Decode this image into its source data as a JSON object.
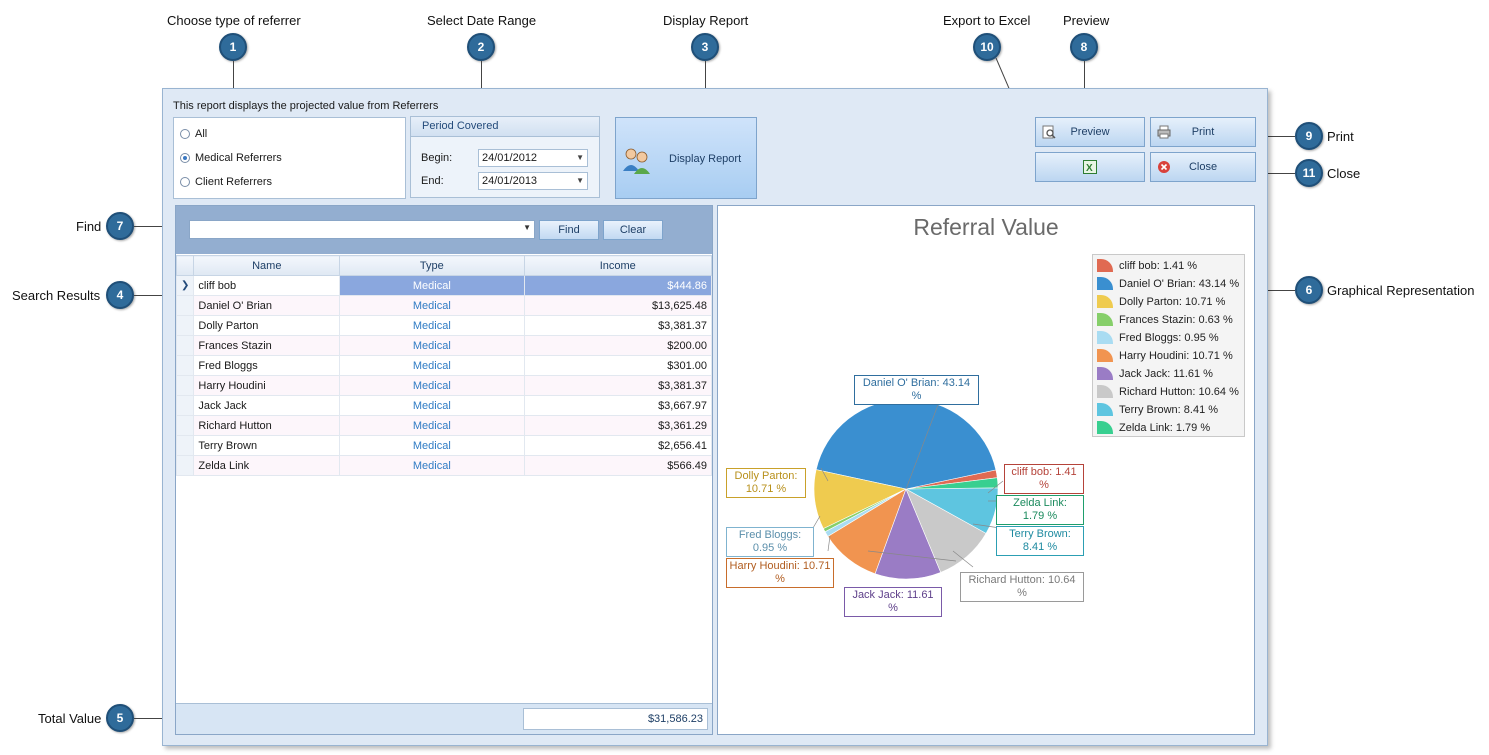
{
  "callouts": {
    "c1": {
      "num": "1",
      "label": "Choose type of referrer"
    },
    "c2": {
      "num": "2",
      "label": "Select Date Range"
    },
    "c3": {
      "num": "3",
      "label": "Display Report"
    },
    "c10": {
      "num": "10",
      "label": "Export to Excel"
    },
    "c8": {
      "num": "8",
      "label": "Preview"
    },
    "c9": {
      "num": "9",
      "label": "Print"
    },
    "c11": {
      "num": "11",
      "label": "Close"
    },
    "c7": {
      "num": "7",
      "label": "Find"
    },
    "c4": {
      "num": "4",
      "label": "Search Results"
    },
    "c6": {
      "num": "6",
      "label": "Graphical Representation"
    },
    "c5": {
      "num": "5",
      "label": "Total Value"
    }
  },
  "report": {
    "description": "This report displays the projected value from Referrers",
    "referrer_options": [
      "All",
      "Medical Referrers",
      "Client Referrers"
    ],
    "selected_option": "Medical Referrers",
    "period_title": "Period Covered",
    "begin_label": "Begin:",
    "begin_value": "24/01/2012",
    "end_label": "End:",
    "end_value": "24/01/2013",
    "display_button": "Display Report"
  },
  "actions": {
    "preview": "Preview",
    "print": "Print",
    "close": "Close",
    "excel_icon": "excel-icon"
  },
  "search": {
    "find_value": "",
    "find_button": "Find",
    "clear_button": "Clear"
  },
  "grid": {
    "columns": [
      "Name",
      "Type",
      "Income"
    ],
    "rows": [
      {
        "name": "cliff bob",
        "type": "Medical",
        "income": "$444.86"
      },
      {
        "name": "Daniel O' Brian",
        "type": "Medical",
        "income": "$13,625.48"
      },
      {
        "name": "Dolly Parton",
        "type": "Medical",
        "income": "$3,381.37"
      },
      {
        "name": "Frances Stazin",
        "type": "Medical",
        "income": "$200.00"
      },
      {
        "name": "Fred Bloggs",
        "type": "Medical",
        "income": "$301.00"
      },
      {
        "name": "Harry Houdini",
        "type": "Medical",
        "income": "$3,381.37"
      },
      {
        "name": "Jack Jack",
        "type": "Medical",
        "income": "$3,667.97"
      },
      {
        "name": "Richard Hutton",
        "type": "Medical",
        "income": "$3,361.29"
      },
      {
        "name": "Terry Brown",
        "type": "Medical",
        "income": "$2,656.41"
      },
      {
        "name": "Zelda Link",
        "type": "Medical",
        "income": "$566.49"
      }
    ],
    "selected_index": 0,
    "total": "$31,586.23"
  },
  "chart_data": {
    "type": "pie",
    "title": "Referral Value",
    "legend_position": "top-right",
    "slices": [
      {
        "name": "cliff bob",
        "value": 1.41,
        "label": "cliff bob: 1.41 %",
        "color": "#e06a52"
      },
      {
        "name": "Daniel O' Brian",
        "value": 43.14,
        "label": "Daniel O' Brian: 43.14 %",
        "color": "#3a8fd0"
      },
      {
        "name": "Dolly Parton",
        "value": 10.71,
        "label": "Dolly Parton: 10.71 %",
        "color": "#efcb4f"
      },
      {
        "name": "Frances Stazin",
        "value": 0.63,
        "label": "Frances Stazin: 0.63 %",
        "color": "#86cf6a"
      },
      {
        "name": "Fred Bloggs",
        "value": 0.95,
        "label": "Fred Bloggs: 0.95 %",
        "color": "#a9dcf2"
      },
      {
        "name": "Harry Houdini",
        "value": 10.71,
        "label": "Harry Houdini: 10.71 %",
        "color": "#f19450"
      },
      {
        "name": "Jack Jack",
        "value": 11.61,
        "label": "Jack Jack: 11.61 %",
        "color": "#9a7cc5"
      },
      {
        "name": "Richard Hutton",
        "value": 10.64,
        "label": "Richard Hutton: 10.64 %",
        "color": "#c9c9c9"
      },
      {
        "name": "Terry Brown",
        "value": 8.41,
        "label": "Terry Brown: 8.41 %",
        "color": "#5ec5e0"
      },
      {
        "name": "Zelda Link",
        "value": 1.79,
        "label": "Zelda Link: 1.79 %",
        "color": "#38cf90"
      }
    ],
    "slice_labels": [
      {
        "text1": "cliff bob: 1.41",
        "text2": "%",
        "border": "#b5433a",
        "color": "#b5433a"
      },
      {
        "text1": "Daniel O' Brian: 43.14 %",
        "text2": "",
        "border": "#2f6e9e",
        "color": "#2f6e9e"
      },
      {
        "text1": "Dolly Parton:",
        "text2": "10.71 %",
        "border": "#c9a12a",
        "color": "#b8901b"
      },
      {
        "text1": "Fred Bloggs:",
        "text2": "0.95 %",
        "border": "#7fb3cf",
        "color": "#5b8fab"
      },
      {
        "text1": "Harry Houdini: 10.71",
        "text2": "%",
        "border": "#c86d2b",
        "color": "#b15d20"
      },
      {
        "text1": "Jack Jack: 11.61 %",
        "text2": "",
        "border": "#7a5aa8",
        "color": "#5e3f8a"
      },
      {
        "text1": "Richard Hutton: 10.64",
        "text2": "%",
        "border": "#9a9a9a",
        "color": "#7a7a7a"
      },
      {
        "text1": "Terry Brown:",
        "text2": "8.41 %",
        "border": "#2c9fb3",
        "color": "#1e8aa0"
      },
      {
        "text1": "Zelda Link:",
        "text2": "1.79 %",
        "border": "#1e9e6c",
        "color": "#1b8a5d"
      }
    ]
  }
}
